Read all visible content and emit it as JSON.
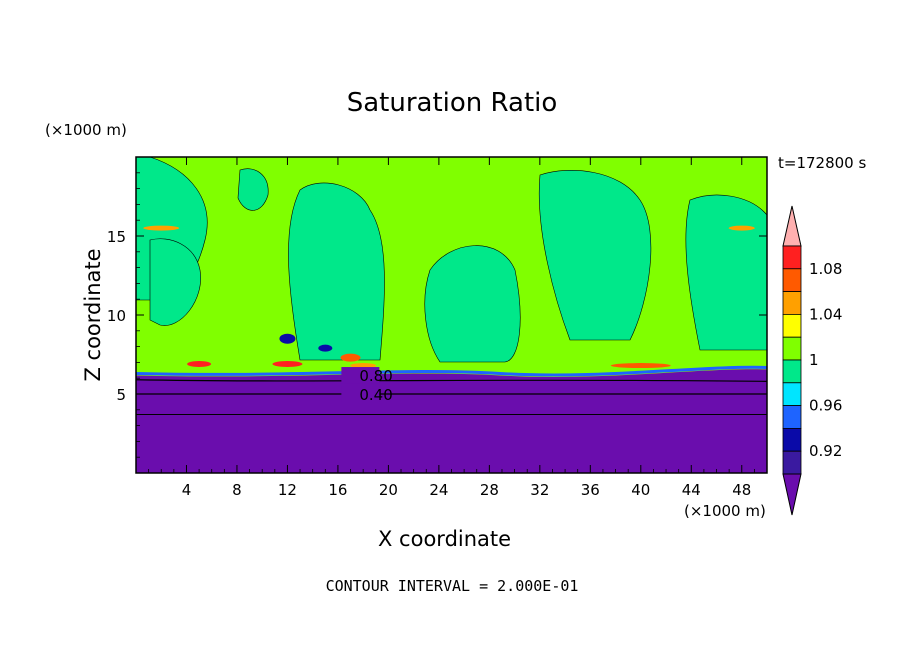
{
  "chart_data": {
    "type": "heatmap",
    "title": "Saturation Ratio",
    "xlabel": "X coordinate",
    "ylabel": "Z coordinate",
    "x_unit": "(×1000 m)",
    "y_unit": "(×1000 m)",
    "time_label": "t=172800 s",
    "footer": "CONTOUR INTERVAL = 2.000E-01",
    "xlim": [
      0,
      50
    ],
    "ylim": [
      0,
      20
    ],
    "x_ticks": [
      4,
      8,
      12,
      16,
      20,
      24,
      28,
      32,
      36,
      40,
      44,
      48
    ],
    "y_ticks": [
      5,
      10,
      15
    ],
    "contour_labels": [
      {
        "text": "0.80",
        "x": 17.7,
        "z": 6.2
      },
      {
        "text": "0.40",
        "x": 17.7,
        "z": 5.0
      }
    ],
    "colorbar": {
      "levels": [
        0.92,
        0.96,
        1,
        1.04,
        1.08
      ],
      "level_labels": [
        "0.92",
        "0.96",
        "1",
        "1.04",
        "1.08"
      ],
      "colors": [
        "#6a0dad",
        "#3a1aa0",
        "#0a0aa8",
        "#1e64ff",
        "#00e5ff",
        "#00e88a",
        "#80ff00",
        "#ffff00",
        "#ffa000",
        "#ff5a00",
        "#ff2020",
        "#ffb0b0"
      ]
    },
    "regions": {
      "dry_layer_top_z": 6.3,
      "background_color": "#80ff00",
      "near_one_color": "#00e88a",
      "dry_color": "#6a0dad"
    }
  }
}
